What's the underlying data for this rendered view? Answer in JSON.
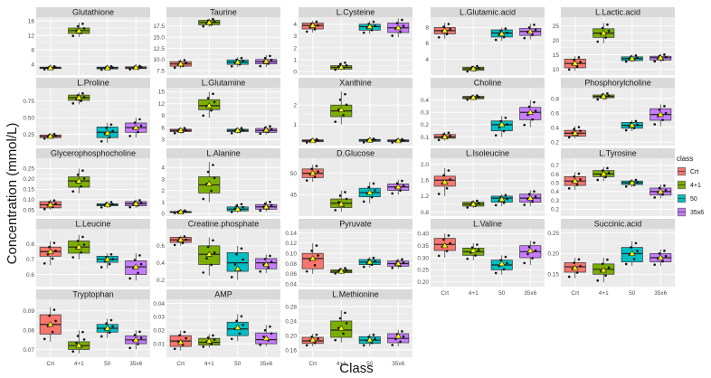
{
  "axis": {
    "ylabel": "Concentration (mmol/L)",
    "xlabel": "Class"
  },
  "legend": {
    "title": "class",
    "position": "right",
    "items": [
      {
        "label": "Crt",
        "color": "#F8766D"
      },
      {
        "label": "4+1",
        "color": "#7CAE00"
      },
      {
        "label": "50",
        "color": "#00BFC4"
      },
      {
        "label": "35x6",
        "color": "#C77CFF"
      }
    ]
  },
  "colors": {
    "panel_bg": "#EBEBEB",
    "strip_bg": "#D9D9D9",
    "grid": "#FFFFFF",
    "mean_marker": "#FFFF00"
  },
  "chart_data": {
    "type": "boxplot",
    "categories": [
      "Crt",
      "4+1",
      "50",
      "35x6"
    ],
    "panels": [
      {
        "title": "Glutathione",
        "ylim": [
          1,
          17
        ],
        "ticks": [
          4,
          8,
          12,
          16
        ],
        "boxes": [
          [
            2.5,
            2.8,
            3,
            3.2,
            3.5
          ],
          [
            11.5,
            12.5,
            13.3,
            14,
            15.5
          ],
          [
            2.4,
            2.7,
            3,
            3.2,
            3.5
          ],
          [
            2.5,
            2.8,
            3,
            3.3,
            3.6
          ]
        ],
        "means": [
          3,
          13.2,
          3,
          3.1
        ]
      },
      {
        "title": "Taurine",
        "ylim": [
          6.5,
          19.5
        ],
        "ticks": [
          7.5,
          10.0,
          12.5,
          15.0,
          17.5
        ],
        "boxes": [
          [
            8,
            8.5,
            9,
            9.5,
            10
          ],
          [
            17.3,
            17.8,
            18.3,
            18.8,
            19.2
          ],
          [
            8.3,
            8.9,
            9.4,
            9.9,
            10.5
          ],
          [
            8.3,
            9,
            9.5,
            10,
            11
          ]
        ],
        "means": [
          9,
          18.3,
          9.4,
          9.6
        ]
      },
      {
        "title": "L.Cysteine",
        "ylim": [
          -0.3,
          4.6
        ],
        "ticks": [
          0,
          1,
          2,
          3,
          4
        ],
        "boxes": [
          [
            3.3,
            3.6,
            3.9,
            4.1,
            4.3
          ],
          [
            0.1,
            0.2,
            0.35,
            0.5,
            0.8
          ],
          [
            3.2,
            3.5,
            3.8,
            4,
            4.3
          ],
          [
            2.9,
            3.3,
            3.7,
            4.1,
            4.5
          ]
        ],
        "means": [
          3.9,
          0.35,
          3.8,
          3.7
        ]
      },
      {
        "title": "L.Glutamic.acid",
        "ylim": [
          2,
          9.3
        ],
        "ticks": [
          4,
          6,
          8
        ],
        "boxes": [
          [
            6.6,
            7.2,
            7.6,
            8,
            8.6
          ],
          [
            2.4,
            2.6,
            2.8,
            3,
            3.2
          ],
          [
            6.3,
            6.8,
            7.3,
            7.7,
            8
          ],
          [
            6.5,
            7,
            7.5,
            7.9,
            8.5
          ]
        ],
        "means": [
          7.6,
          2.8,
          7.2,
          7.5
        ]
      },
      {
        "title": "L.Lactic.acid",
        "ylim": [
          8,
          28
        ],
        "ticks": [
          10,
          15,
          20,
          25
        ],
        "boxes": [
          [
            9.5,
            10.5,
            12,
            13.5,
            14.5
          ],
          [
            19,
            21,
            22.5,
            24,
            26
          ],
          [
            12.5,
            13,
            13.7,
            14.3,
            15
          ],
          [
            12.5,
            13.2,
            14,
            14.5,
            15.3
          ]
        ],
        "means": [
          12,
          22.5,
          13.7,
          14
        ]
      },
      {
        "title": "L.Proline",
        "ylim": [
          0.08,
          0.95
        ],
        "ticks": [
          0.25,
          0.5,
          0.75
        ],
        "boxes": [
          [
            0.18,
            0.2,
            0.22,
            0.24,
            0.26
          ],
          [
            0.7,
            0.76,
            0.8,
            0.84,
            0.88
          ],
          [
            0.12,
            0.2,
            0.28,
            0.36,
            0.42
          ],
          [
            0.2,
            0.28,
            0.35,
            0.42,
            0.5
          ]
        ],
        "means": [
          0.22,
          0.8,
          0.27,
          0.35
        ]
      },
      {
        "title": "L.Glutamine",
        "ylim": [
          1.5,
          16
        ],
        "ticks": [
          3,
          6,
          9,
          12,
          15
        ],
        "boxes": [
          [
            4.5,
            5,
            5.3,
            5.6,
            6
          ],
          [
            8.5,
            10.5,
            11.5,
            13,
            15
          ],
          [
            4.5,
            5,
            5.3,
            5.6,
            6
          ],
          [
            4.3,
            4.8,
            5.3,
            5.8,
            6.5
          ]
        ],
        "means": [
          5.3,
          11.5,
          5.3,
          5.4
        ]
      },
      {
        "title": "Xanthine",
        "ylim": [
          -0.1,
          2.9
        ],
        "ticks": [
          1,
          2
        ],
        "boxes": [
          [
            0.05,
            0.1,
            0.15,
            0.2,
            0.25
          ],
          [
            1,
            1.4,
            1.7,
            2,
            2.7
          ],
          [
            0.05,
            0.12,
            0.18,
            0.22,
            0.28
          ],
          [
            0.05,
            0.1,
            0.15,
            0.2,
            0.25
          ]
        ],
        "means": [
          0.15,
          1.75,
          0.18,
          0.15
        ]
      },
      {
        "title": "Choline",
        "ylim": [
          0.03,
          0.5
        ],
        "ticks": [
          0.1,
          0.2,
          0.3,
          0.4
        ],
        "boxes": [
          [
            0.07,
            0.09,
            0.1,
            0.12,
            0.14
          ],
          [
            0.4,
            0.41,
            0.42,
            0.43,
            0.44
          ],
          [
            0.1,
            0.15,
            0.2,
            0.23,
            0.27
          ],
          [
            0.18,
            0.24,
            0.3,
            0.34,
            0.4
          ]
        ],
        "means": [
          0.1,
          0.42,
          0.2,
          0.3
        ]
      },
      {
        "title": "Phosphorylcholine",
        "ylim": [
          0.15,
          0.95
        ],
        "ticks": [
          0.2,
          0.4,
          0.6,
          0.8
        ],
        "boxes": [
          [
            0.25,
            0.28,
            0.32,
            0.36,
            0.42
          ],
          [
            0.78,
            0.81,
            0.83,
            0.85,
            0.88
          ],
          [
            0.35,
            0.39,
            0.43,
            0.47,
            0.5
          ],
          [
            0.42,
            0.5,
            0.58,
            0.66,
            0.72
          ]
        ],
        "means": [
          0.32,
          0.83,
          0.43,
          0.58
        ]
      },
      {
        "title": "Glycerophosphocholine",
        "ylim": [
          0.02,
          0.3
        ],
        "ticks": [
          0.05,
          0.1,
          0.15,
          0.2,
          0.25
        ],
        "boxes": [
          [
            0.05,
            0.06,
            0.075,
            0.09,
            0.1
          ],
          [
            0.13,
            0.16,
            0.19,
            0.21,
            0.25
          ],
          [
            0.06,
            0.07,
            0.075,
            0.08,
            0.09
          ],
          [
            0.06,
            0.07,
            0.08,
            0.09,
            0.1
          ]
        ],
        "means": [
          0.075,
          0.19,
          0.075,
          0.08
        ]
      },
      {
        "title": "L.Alanine",
        "ylim": [
          -0.2,
          4.8
        ],
        "ticks": [
          0,
          1,
          2,
          3,
          4
        ],
        "boxes": [
          [
            0.05,
            0.1,
            0.15,
            0.2,
            0.3
          ],
          [
            1,
            1.8,
            2.5,
            3.2,
            4.5
          ],
          [
            0.1,
            0.25,
            0.4,
            0.6,
            0.9
          ],
          [
            0.2,
            0.4,
            0.6,
            0.8,
            1.1
          ]
        ],
        "means": [
          0.15,
          2.6,
          0.4,
          0.6
        ]
      },
      {
        "title": "D.Glucose",
        "ylim": [
          40,
          53.5
        ],
        "ticks": [
          45,
          50
        ],
        "boxes": [
          [
            48,
            49,
            50,
            51,
            52
          ],
          [
            41,
            42,
            43,
            44,
            46
          ],
          [
            43,
            44.5,
            45.5,
            46.5,
            48
          ],
          [
            45,
            46,
            46.8,
            47.5,
            48.5
          ]
        ],
        "means": [
          50,
          42.8,
          45.5,
          46.8
        ]
      },
      {
        "title": "L.Isoleucine",
        "ylim": [
          0.7,
          2.15
        ],
        "ticks": [
          0.8,
          1.2,
          1.6,
          2.0
        ],
        "boxes": [
          [
            1.2,
            1.45,
            1.6,
            1.7,
            1.9
          ],
          [
            0.9,
            0.95,
            1,
            1.05,
            1.1
          ],
          [
            0.95,
            1.05,
            1.15,
            1.2,
            1.25
          ],
          [
            0.95,
            1.05,
            1.15,
            1.25,
            1.35
          ]
        ],
        "means": [
          1.55,
          1,
          1.12,
          1.15
        ]
      },
      {
        "title": "L.Tyrosine",
        "ylim": [
          0.12,
          0.78
        ],
        "ticks": [
          0.2,
          0.3,
          0.4,
          0.5,
          0.6,
          0.7
        ],
        "boxes": [
          [
            0.42,
            0.47,
            0.52,
            0.57,
            0.62
          ],
          [
            0.52,
            0.57,
            0.6,
            0.64,
            0.68
          ],
          [
            0.45,
            0.48,
            0.5,
            0.52,
            0.54
          ],
          [
            0.32,
            0.36,
            0.4,
            0.44,
            0.48
          ]
        ],
        "means": [
          0.52,
          0.6,
          0.5,
          0.4
        ]
      },
      {
        "title": "L.Leucine",
        "ylim": [
          0.52,
          0.9
        ],
        "ticks": [
          0.6,
          0.7,
          0.8
        ],
        "boxes": [
          [
            0.66,
            0.72,
            0.75,
            0.78,
            0.82
          ],
          [
            0.7,
            0.74,
            0.78,
            0.82,
            0.86
          ],
          [
            0.64,
            0.68,
            0.7,
            0.72,
            0.74
          ],
          [
            0.56,
            0.6,
            0.65,
            0.69,
            0.74
          ]
        ],
        "means": [
          0.75,
          0.78,
          0.7,
          0.65
        ]
      },
      {
        "title": "Creatine.phosphate",
        "ylim": [
          0.12,
          0.8
        ],
        "ticks": [
          0.2,
          0.4,
          0.6
        ],
        "boxes": [
          [
            0.6,
            0.64,
            0.67,
            0.7,
            0.72
          ],
          [
            0.25,
            0.38,
            0.5,
            0.6,
            0.7
          ],
          [
            0.2,
            0.3,
            0.4,
            0.52,
            0.6
          ],
          [
            0.28,
            0.33,
            0.4,
            0.45,
            0.5
          ]
        ],
        "means": [
          0.67,
          0.5,
          0.33,
          0.38
        ]
      },
      {
        "title": "Pyruvate",
        "ylim": [
          0.035,
          0.148
        ],
        "ticks": [
          0.04,
          0.06,
          0.08,
          0.1,
          0.12,
          0.14
        ],
        "boxes": [
          [
            0.06,
            0.07,
            0.09,
            0.1,
            0.12
          ],
          [
            0.06,
            0.062,
            0.065,
            0.068,
            0.072
          ],
          [
            0.072,
            0.078,
            0.083,
            0.088,
            0.093
          ],
          [
            0.07,
            0.075,
            0.08,
            0.085,
            0.09
          ]
        ],
        "means": [
          0.09,
          0.065,
          0.083,
          0.08
        ]
      },
      {
        "title": "L.Valine",
        "ylim": [
          0.18,
          0.42
        ],
        "ticks": [
          0.2,
          0.25,
          0.3,
          0.35,
          0.4
        ],
        "boxes": [
          [
            0.3,
            0.33,
            0.355,
            0.38,
            0.4
          ],
          [
            0.29,
            0.31,
            0.325,
            0.34,
            0.36
          ],
          [
            0.23,
            0.25,
            0.27,
            0.29,
            0.31
          ],
          [
            0.27,
            0.3,
            0.325,
            0.35,
            0.37
          ]
        ],
        "means": [
          0.35,
          0.33,
          0.275,
          0.33
        ]
      },
      {
        "title": "Succinic.acid",
        "ylim": [
          0.12,
          0.26
        ],
        "ticks": [
          0.15,
          0.2,
          0.25
        ],
        "boxes": [
          [
            0.14,
            0.155,
            0.168,
            0.178,
            0.19
          ],
          [
            0.13,
            0.15,
            0.162,
            0.175,
            0.19
          ],
          [
            0.17,
            0.18,
            0.2,
            0.215,
            0.23
          ],
          [
            0.17,
            0.18,
            0.19,
            0.2,
            0.21
          ]
        ],
        "means": [
          0.165,
          0.16,
          0.2,
          0.19
        ]
      },
      {
        "title": "Tryptophan",
        "ylim": [
          0.066,
          0.096
        ],
        "ticks": [
          0.07,
          0.08,
          0.09
        ],
        "boxes": [
          [
            0.074,
            0.078,
            0.083,
            0.088,
            0.092
          ],
          [
            0.068,
            0.07,
            0.072,
            0.074,
            0.08
          ],
          [
            0.076,
            0.079,
            0.081,
            0.083,
            0.086
          ],
          [
            0.07,
            0.073,
            0.075,
            0.077,
            0.08
          ]
        ],
        "means": [
          0.083,
          0.072,
          0.081,
          0.075
        ]
      },
      {
        "title": "AMP",
        "ylim": [
          0,
          0.043
        ],
        "ticks": [
          0.01,
          0.02,
          0.03,
          0.04
        ],
        "boxes": [
          [
            0.005,
            0.008,
            0.012,
            0.016,
            0.02
          ],
          [
            0.007,
            0.009,
            0.011,
            0.014,
            0.017
          ],
          [
            0.012,
            0.016,
            0.021,
            0.026,
            0.032
          ],
          [
            0.008,
            0.01,
            0.013,
            0.018,
            0.024
          ]
        ],
        "means": [
          0.011,
          0.012,
          0.022,
          0.014
        ]
      },
      {
        "title": "L.Methionine",
        "ylim": [
          0.14,
          0.3
        ],
        "ticks": [
          0.16,
          0.2,
          0.24,
          0.28
        ],
        "boxes": [
          [
            0.17,
            0.178,
            0.185,
            0.195,
            0.205
          ],
          [
            0.18,
            0.195,
            0.215,
            0.24,
            0.27
          ],
          [
            0.17,
            0.178,
            0.187,
            0.197,
            0.205
          ],
          [
            0.17,
            0.18,
            0.192,
            0.205,
            0.215
          ]
        ],
        "means": [
          0.188,
          0.22,
          0.188,
          0.198
        ]
      }
    ]
  }
}
